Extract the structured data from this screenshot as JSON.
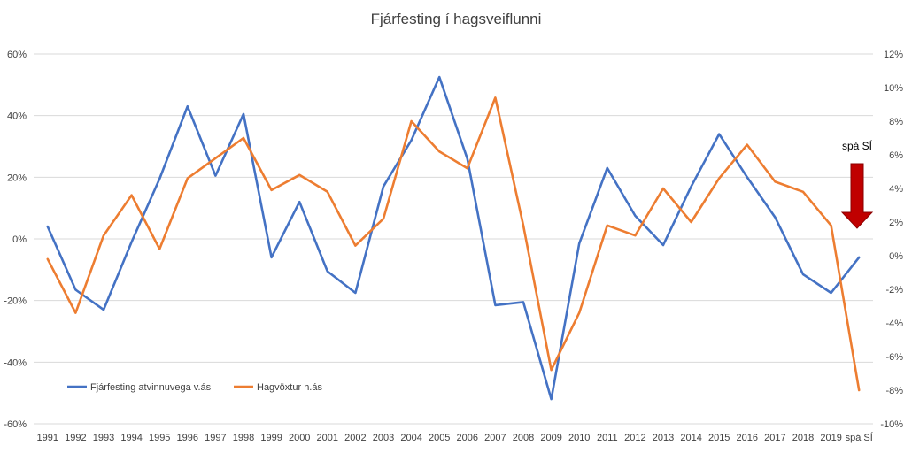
{
  "chart_data": {
    "type": "line",
    "title": "Fjárfesting í hagsveiflunni",
    "categories": [
      "1991",
      "1992",
      "1993",
      "1994",
      "1995",
      "1996",
      "1997",
      "1998",
      "1999",
      "2000",
      "2001",
      "2002",
      "2003",
      "2004",
      "2005",
      "2006",
      "2007",
      "2008",
      "2009",
      "2010",
      "2011",
      "2012",
      "2013",
      "2014",
      "2015",
      "2016",
      "2017",
      "2018",
      "2019",
      "spá SÍ"
    ],
    "y_left": {
      "min": -60,
      "max": 60,
      "step": 20,
      "ticks": [
        "60%",
        "40%",
        "20%",
        "0%",
        "-20%",
        "-40%",
        "-60%"
      ]
    },
    "y_right": {
      "min": -10,
      "max": 12,
      "step": 2,
      "ticks": [
        "12%",
        "10%",
        "8%",
        "6%",
        "4%",
        "2%",
        "0%",
        "-2%",
        "-4%",
        "-6%",
        "-8%",
        "-10%"
      ]
    },
    "grid": true,
    "legend_position": "bottom-left",
    "series": [
      {
        "name": "Fjárfesting atvinnuvega v.ás",
        "axis": "left",
        "color": "#4472C4",
        "values": [
          4,
          -16.5,
          -23,
          -1,
          19.5,
          43,
          20.5,
          40.5,
          -6,
          12,
          -10.5,
          -17.5,
          17,
          32,
          52.5,
          26,
          -21.5,
          -20.5,
          -52,
          -1.5,
          23,
          7.5,
          -2,
          17,
          34,
          20,
          7,
          -11.5,
          -17.5,
          -6
        ]
      },
      {
        "name": "Hagvöxtur h.ás",
        "axis": "right",
        "color": "#ED7D31",
        "values": [
          -0.2,
          -3.4,
          1.2,
          3.6,
          0.4,
          4.6,
          5.8,
          7.0,
          3.9,
          4.8,
          3.8,
          0.6,
          2.2,
          8.0,
          6.2,
          5.2,
          9.4,
          1.8,
          -6.8,
          -3.4,
          1.8,
          1.2,
          4.0,
          2.0,
          4.6,
          6.6,
          4.4,
          3.8,
          1.8,
          -8.0
        ]
      }
    ],
    "annotation": {
      "text": "spá SÍ",
      "arrow": "down",
      "arrow_color": "#C00000"
    }
  }
}
